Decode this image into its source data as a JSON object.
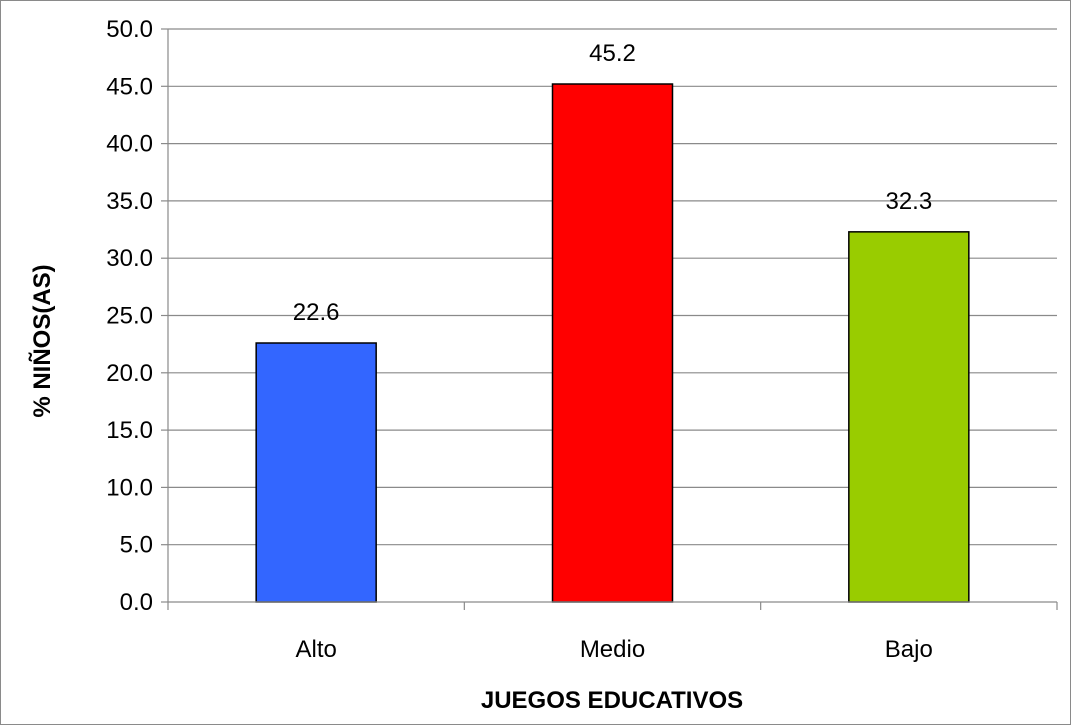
{
  "chart_data": {
    "type": "bar",
    "categories": [
      "Alto",
      "Medio",
      "Bajo"
    ],
    "values": [
      22.6,
      45.2,
      32.3
    ],
    "data_labels": [
      "22.6",
      "45.2",
      "32.3"
    ],
    "colors": [
      "#3366ff",
      "#ff0000",
      "#99cc00"
    ],
    "title": "",
    "xlabel": "JUEGOS EDUCATIVOS",
    "ylabel": "% NIÑOS(AS)",
    "ylim": [
      0,
      50
    ],
    "ytick_step": 5,
    "yticks": [
      "0.0",
      "5.0",
      "10.0",
      "15.0",
      "20.0",
      "25.0",
      "30.0",
      "35.0",
      "40.0",
      "45.0",
      "50.0"
    ],
    "grid": true,
    "legend": "none"
  }
}
